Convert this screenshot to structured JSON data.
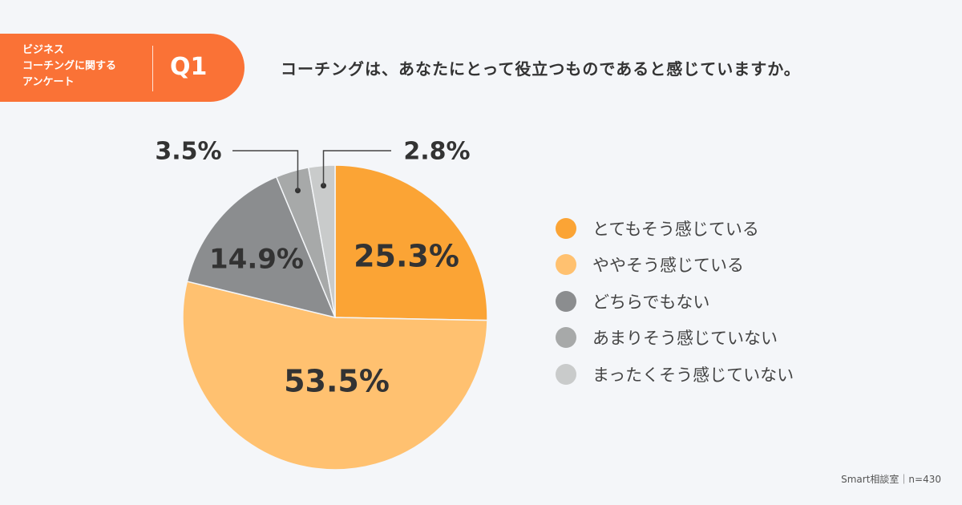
{
  "header": {
    "badge_text": [
      "ビジネス",
      "コーチングに関する",
      "アンケート"
    ],
    "q_label": "Q1",
    "question": "コーチングは、あなたにとって役立つものであると感じていますか。"
  },
  "footer": "Smart相談室｜n=430",
  "chart_data": {
    "type": "pie",
    "start": "top, clockwise",
    "slices": [
      {
        "name": "とてもそう感じている",
        "value": 25.3,
        "label": "25.3%",
        "color": "#fba435"
      },
      {
        "name": "ややそう感じている",
        "value": 53.5,
        "label": "53.5%",
        "color": "#ffc170"
      },
      {
        "name": "どちらでもない",
        "value": 14.9,
        "label": "14.9%",
        "color": "#8b8d8f"
      },
      {
        "name": "あまりそう感じていない",
        "value": 3.5,
        "label": "3.5%",
        "color": "#a7a9a9"
      },
      {
        "name": "まったくそう感じていない",
        "value": 2.8,
        "label": "2.8%",
        "color": "#c9cbcb"
      }
    ],
    "legend": "right"
  }
}
